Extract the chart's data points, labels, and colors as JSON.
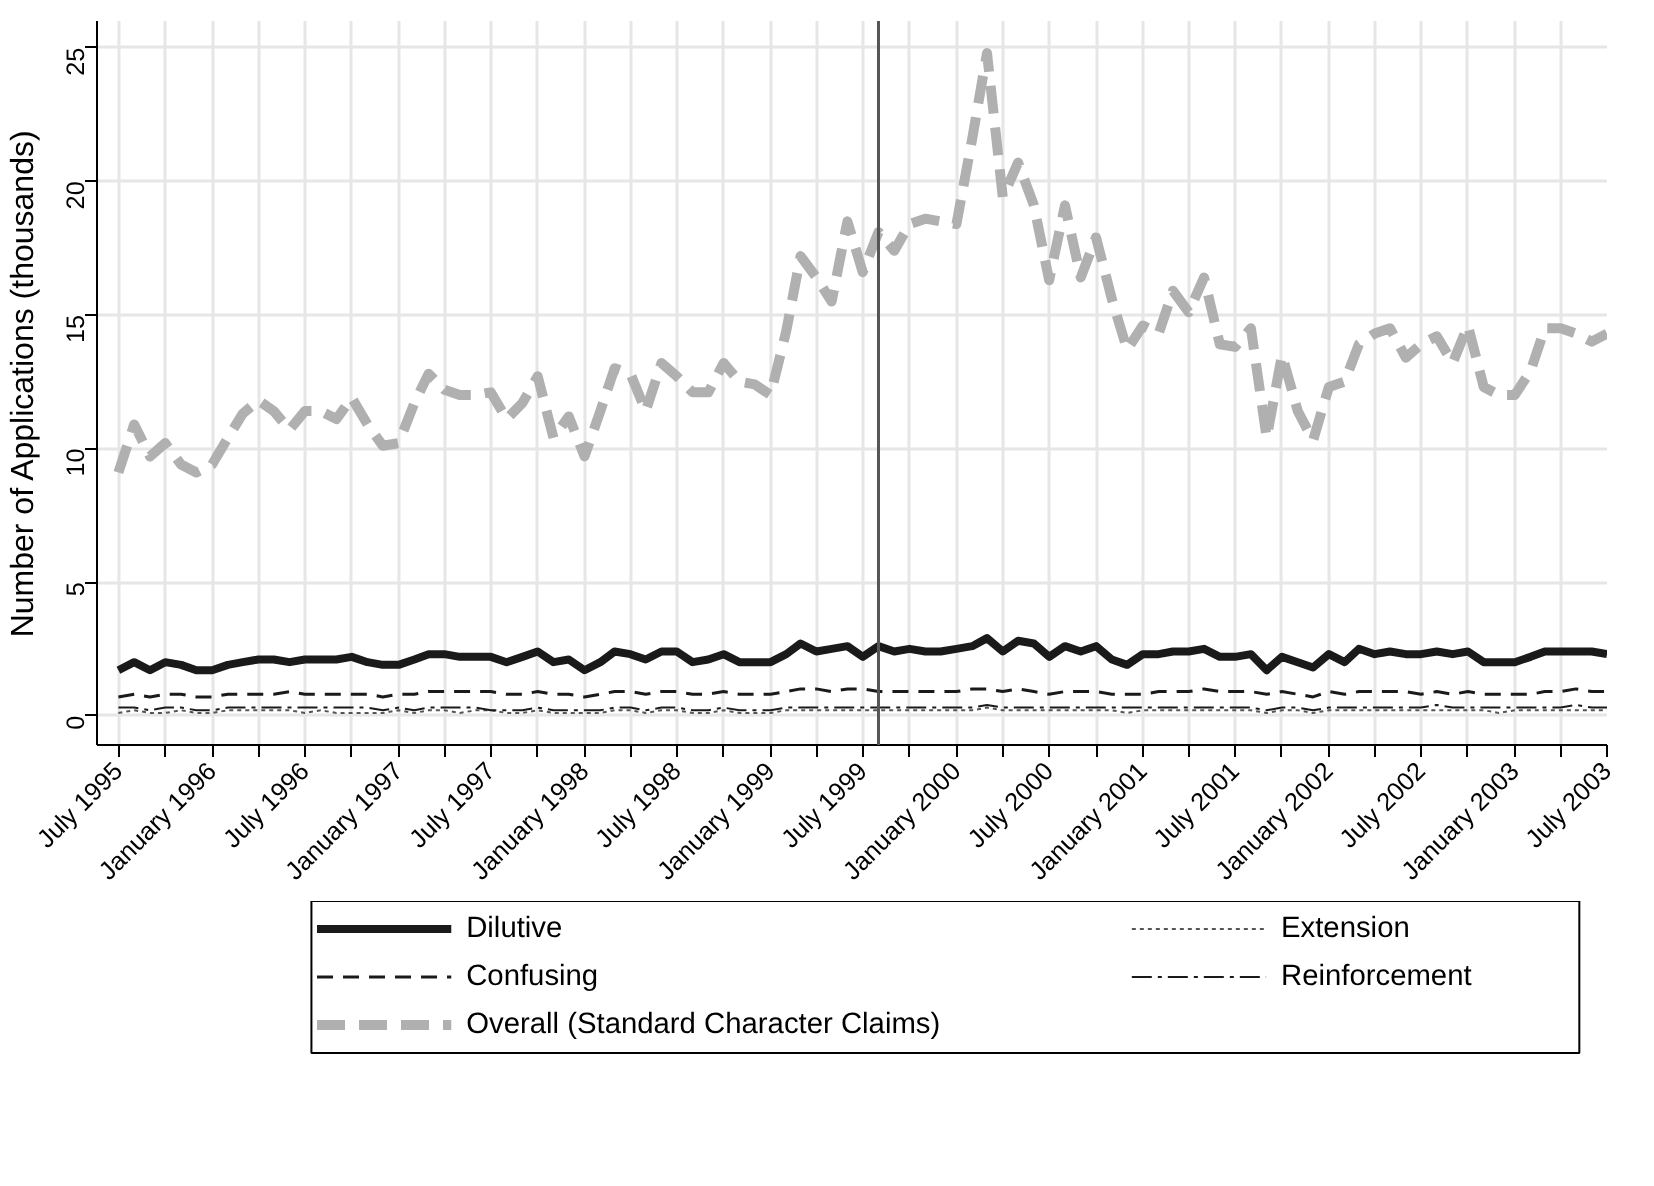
{
  "chart_data": {
    "type": "line",
    "ylabel": "Number of Applications (thousands)",
    "x": [
      "1995-07",
      "1995-08",
      "1995-09",
      "1995-10",
      "1995-11",
      "1995-12",
      "1996-01",
      "1996-02",
      "1996-03",
      "1996-04",
      "1996-05",
      "1996-06",
      "1996-07",
      "1996-08",
      "1996-09",
      "1996-10",
      "1996-11",
      "1996-12",
      "1997-01",
      "1997-02",
      "1997-03",
      "1997-04",
      "1997-05",
      "1997-06",
      "1997-07",
      "1997-08",
      "1997-09",
      "1997-10",
      "1997-11",
      "1997-12",
      "1998-01",
      "1998-02",
      "1998-03",
      "1998-04",
      "1998-05",
      "1998-06",
      "1998-07",
      "1998-08",
      "1998-09",
      "1998-10",
      "1998-11",
      "1998-12",
      "1999-01",
      "1999-02",
      "1999-03",
      "1999-04",
      "1999-05",
      "1999-06",
      "1999-07",
      "1999-08",
      "1999-09",
      "1999-10",
      "1999-11",
      "1999-12",
      "2000-01",
      "2000-02",
      "2000-03",
      "2000-04",
      "2000-05",
      "2000-06",
      "2000-07",
      "2000-08",
      "2000-09",
      "2000-10",
      "2000-11",
      "2000-12",
      "2001-01",
      "2001-02",
      "2001-03",
      "2001-04",
      "2001-05",
      "2001-06",
      "2001-07",
      "2001-08",
      "2001-09",
      "2001-10",
      "2001-11",
      "2001-12",
      "2002-01",
      "2002-02",
      "2002-03",
      "2002-04",
      "2002-05",
      "2002-06",
      "2002-07",
      "2002-08",
      "2002-09",
      "2002-10",
      "2002-11",
      "2002-12",
      "2003-01",
      "2003-02",
      "2003-03",
      "2003-04",
      "2003-05",
      "2003-06",
      "2003-07"
    ],
    "series": [
      {
        "name": "Dilutive",
        "color": "#1a1a1a",
        "line_style": "solid",
        "values": [
          1.7,
          2.0,
          1.7,
          2.0,
          1.9,
          1.7,
          1.7,
          1.9,
          2.0,
          2.1,
          2.1,
          2.0,
          2.1,
          2.1,
          2.1,
          2.2,
          2.0,
          1.9,
          1.9,
          2.1,
          2.3,
          2.3,
          2.2,
          2.2,
          2.2,
          2.0,
          2.2,
          2.4,
          2.0,
          2.1,
          1.7,
          2.0,
          2.4,
          2.3,
          2.1,
          2.4,
          2.4,
          2.0,
          2.1,
          2.3,
          2.0,
          2.0,
          2.0,
          2.3,
          2.7,
          2.4,
          2.5,
          2.6,
          2.2,
          2.6,
          2.4,
          2.5,
          2.4,
          2.4,
          2.5,
          2.6,
          2.9,
          2.4,
          2.8,
          2.7,
          2.2,
          2.6,
          2.4,
          2.6,
          2.1,
          1.9,
          2.3,
          2.3,
          2.4,
          2.4,
          2.5,
          2.2,
          2.2,
          2.3,
          1.7,
          2.2,
          2.0,
          1.8,
          2.3,
          2.0,
          2.5,
          2.3,
          2.4,
          2.3,
          2.3,
          2.4,
          2.3,
          2.4,
          2.0,
          2.0,
          2.0,
          2.2,
          2.4,
          2.4,
          2.4,
          2.4,
          2.3
        ]
      },
      {
        "name": "Extension",
        "color": "#555555",
        "line_style": "dotted",
        "values": [
          0.1,
          0.2,
          0.1,
          0.1,
          0.2,
          0.1,
          0.1,
          0.2,
          0.2,
          0.2,
          0.2,
          0.2,
          0.1,
          0.2,
          0.1,
          0.1,
          0.1,
          0.1,
          0.2,
          0.1,
          0.2,
          0.2,
          0.1,
          0.2,
          0.2,
          0.1,
          0.1,
          0.2,
          0.1,
          0.1,
          0.1,
          0.1,
          0.2,
          0.2,
          0.1,
          0.2,
          0.2,
          0.1,
          0.1,
          0.2,
          0.1,
          0.1,
          0.1,
          0.2,
          0.2,
          0.2,
          0.2,
          0.2,
          0.2,
          0.2,
          0.2,
          0.2,
          0.2,
          0.2,
          0.2,
          0.2,
          0.3,
          0.2,
          0.2,
          0.2,
          0.2,
          0.2,
          0.2,
          0.2,
          0.2,
          0.1,
          0.2,
          0.2,
          0.2,
          0.2,
          0.2,
          0.2,
          0.2,
          0.2,
          0.1,
          0.2,
          0.2,
          0.1,
          0.2,
          0.2,
          0.2,
          0.2,
          0.2,
          0.2,
          0.2,
          0.2,
          0.2,
          0.2,
          0.2,
          0.1,
          0.2,
          0.2,
          0.2,
          0.2,
          0.2,
          0.2,
          0.2
        ]
      },
      {
        "name": "Confusing",
        "color": "#1a1a1a",
        "line_style": "dashed",
        "values": [
          0.7,
          0.8,
          0.7,
          0.8,
          0.8,
          0.7,
          0.7,
          0.8,
          0.8,
          0.8,
          0.8,
          0.9,
          0.8,
          0.8,
          0.8,
          0.8,
          0.8,
          0.7,
          0.8,
          0.8,
          0.9,
          0.9,
          0.9,
          0.9,
          0.9,
          0.8,
          0.8,
          0.9,
          0.8,
          0.8,
          0.7,
          0.8,
          0.9,
          0.9,
          0.8,
          0.9,
          0.9,
          0.8,
          0.8,
          0.9,
          0.8,
          0.8,
          0.8,
          0.9,
          1.0,
          1.0,
          0.9,
          1.0,
          1.0,
          0.9,
          0.9,
          0.9,
          0.9,
          0.9,
          0.9,
          1.0,
          1.0,
          0.9,
          1.0,
          0.9,
          0.8,
          0.9,
          0.9,
          0.9,
          0.8,
          0.8,
          0.8,
          0.9,
          0.9,
          0.9,
          1.0,
          0.9,
          0.9,
          0.9,
          0.8,
          0.9,
          0.8,
          0.7,
          0.9,
          0.8,
          0.9,
          0.9,
          0.9,
          0.9,
          0.8,
          0.9,
          0.8,
          0.9,
          0.8,
          0.8,
          0.8,
          0.8,
          0.9,
          0.9,
          1.0,
          0.9,
          0.9
        ]
      },
      {
        "name": "Reinforcement",
        "color": "#1a1a1a",
        "line_style": "dashdot",
        "values": [
          0.3,
          0.3,
          0.2,
          0.3,
          0.3,
          0.2,
          0.2,
          0.3,
          0.3,
          0.3,
          0.3,
          0.3,
          0.3,
          0.3,
          0.3,
          0.3,
          0.3,
          0.2,
          0.3,
          0.2,
          0.3,
          0.3,
          0.3,
          0.3,
          0.2,
          0.2,
          0.2,
          0.3,
          0.2,
          0.2,
          0.2,
          0.2,
          0.3,
          0.3,
          0.2,
          0.3,
          0.3,
          0.2,
          0.2,
          0.3,
          0.2,
          0.2,
          0.2,
          0.3,
          0.3,
          0.3,
          0.3,
          0.3,
          0.3,
          0.3,
          0.3,
          0.3,
          0.3,
          0.3,
          0.3,
          0.3,
          0.4,
          0.3,
          0.3,
          0.3,
          0.3,
          0.3,
          0.3,
          0.3,
          0.3,
          0.3,
          0.3,
          0.3,
          0.3,
          0.3,
          0.3,
          0.3,
          0.3,
          0.3,
          0.2,
          0.3,
          0.3,
          0.2,
          0.3,
          0.3,
          0.3,
          0.3,
          0.3,
          0.3,
          0.3,
          0.4,
          0.3,
          0.3,
          0.3,
          0.3,
          0.3,
          0.3,
          0.3,
          0.3,
          0.4,
          0.3,
          0.3
        ]
      },
      {
        "name": "Overall (Standard Character Claims)",
        "color": "#b0b0b0",
        "line_style": "dashed",
        "values": [
          9.1,
          10.9,
          9.7,
          10.2,
          9.4,
          9.1,
          9.4,
          10.4,
          11.3,
          11.8,
          11.4,
          10.7,
          11.4,
          11.4,
          11.1,
          11.9,
          10.9,
          10.1,
          10.2,
          11.7,
          12.8,
          12.2,
          12.0,
          12.0,
          12.1,
          11.1,
          11.7,
          12.7,
          10.4,
          11.2,
          9.7,
          11.4,
          13.0,
          12.8,
          11.4,
          13.2,
          12.7,
          12.1,
          12.1,
          13.2,
          12.5,
          12.4,
          12.0,
          14.4,
          17.2,
          16.4,
          15.5,
          18.5,
          16.6,
          18.1,
          17.4,
          18.4,
          18.6,
          18.5,
          18.4,
          21.6,
          24.8,
          19.4,
          20.7,
          19.1,
          16.3,
          19.1,
          16.4,
          17.9,
          15.6,
          13.7,
          14.6,
          14.3,
          15.9,
          15.1,
          16.4,
          13.9,
          13.8,
          14.5,
          10.4,
          13.5,
          11.4,
          10.3,
          12.3,
          12.5,
          13.9,
          14.3,
          14.5,
          13.4,
          13.9,
          14.2,
          13.2,
          14.6,
          12.3,
          12.0,
          12.0,
          12.9,
          14.5,
          14.5,
          14.3,
          14.0,
          14.3
        ]
      }
    ],
    "xlim": [
      "1995-05-20",
      "2003-07-01"
    ],
    "xticks": [
      {
        "value": "1995-07",
        "label": "July 1995"
      },
      {
        "value": "1995-10",
        "label": null
      },
      {
        "value": "1996-01",
        "label": "January 1996"
      },
      {
        "value": "1996-04",
        "label": null
      },
      {
        "value": "1996-07",
        "label": "July 1996"
      },
      {
        "value": "1996-10",
        "label": null
      },
      {
        "value": "1997-01",
        "label": "January 1997"
      },
      {
        "value": "1997-04",
        "label": null
      },
      {
        "value": "1997-07",
        "label": "July 1997"
      },
      {
        "value": "1997-10",
        "label": null
      },
      {
        "value": "1998-01",
        "label": "January 1998"
      },
      {
        "value": "1998-04",
        "label": null
      },
      {
        "value": "1998-07",
        "label": "July 1998"
      },
      {
        "value": "1998-10",
        "label": null
      },
      {
        "value": "1999-01",
        "label": "January 1999"
      },
      {
        "value": "1999-04",
        "label": null
      },
      {
        "value": "1999-07",
        "label": "July 1999"
      },
      {
        "value": "1999-10",
        "label": null
      },
      {
        "value": "2000-01",
        "label": "January 2000"
      },
      {
        "value": "2000-04",
        "label": null
      },
      {
        "value": "2000-07",
        "label": "July 2000"
      },
      {
        "value": "2000-10",
        "label": null
      },
      {
        "value": "2001-01",
        "label": "January 2001"
      },
      {
        "value": "2001-04",
        "label": null
      },
      {
        "value": "2001-07",
        "label": "July 2001"
      },
      {
        "value": "2001-10",
        "label": null
      },
      {
        "value": "2002-01",
        "label": "January 2002"
      },
      {
        "value": "2002-04",
        "label": null
      },
      {
        "value": "2002-07",
        "label": "July 2002"
      },
      {
        "value": "2002-10",
        "label": null
      },
      {
        "value": "2003-01",
        "label": "January 2003"
      },
      {
        "value": "2003-04",
        "label": null
      },
      {
        "value": "2003-07",
        "label": "July 2003"
      }
    ],
    "ylim": [
      -1.1,
      26
    ],
    "yticks": [
      0,
      5,
      10,
      15,
      20,
      25
    ],
    "grid": true,
    "legend": "bottom",
    "ref_lines": [
      {
        "axis": "x",
        "value": "1999-08",
        "color": "#555555"
      }
    ]
  }
}
